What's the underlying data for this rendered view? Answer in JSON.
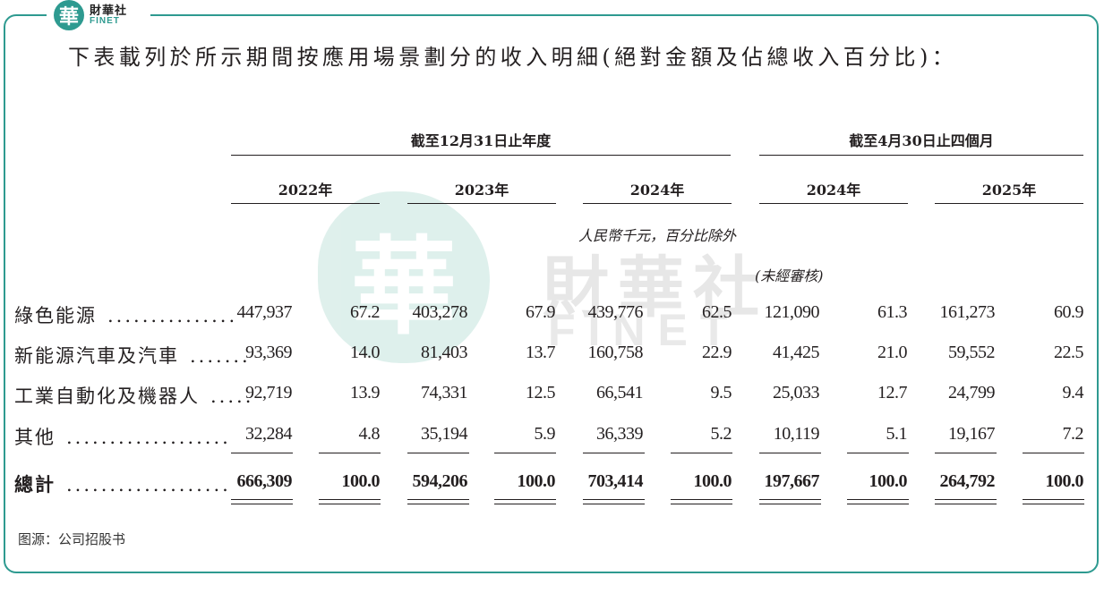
{
  "logo": {
    "mark": "華",
    "cn": "財華社",
    "en": "FINET"
  },
  "heading": "下表載列於所示期間按應用場景劃分的收入明細(絕對金額及佔總收入百分比)：",
  "watermark": {
    "mark": "華",
    "cn": "財華社",
    "en": "FINET"
  },
  "periods": [
    "截至12月31日止年度",
    "截至4月30日止四個月"
  ],
  "years": [
    "2022年",
    "2023年",
    "2024年",
    "2024年",
    "2025年"
  ],
  "currency_note": "人民幣千元，百分比除外",
  "unaudited_note": "(未經審核)",
  "rows": [
    {
      "label": "綠色能源",
      "dots": "...............",
      "values": [
        "447,937",
        "67.2",
        "403,278",
        "67.9",
        "439,776",
        "62.5",
        "121,090",
        "61.3",
        "161,273",
        "60.9"
      ]
    },
    {
      "label": "新能源汽車及汽車",
      "dots": ".......",
      "values": [
        "93,369",
        "14.0",
        "81,403",
        "13.7",
        "160,758",
        "22.9",
        "41,425",
        "21.0",
        "59,552",
        "22.5"
      ]
    },
    {
      "label": "工業自動化及機器人",
      "dots": ".....",
      "values": [
        "92,719",
        "13.9",
        "74,331",
        "12.5",
        "66,541",
        "9.5",
        "25,033",
        "12.7",
        "24,799",
        "9.4"
      ]
    },
    {
      "label": "其他",
      "dots": "...................",
      "values": [
        "32,284",
        "4.8",
        "35,194",
        "5.9",
        "36,339",
        "5.2",
        "10,119",
        "5.1",
        "19,167",
        "7.2"
      ]
    }
  ],
  "total": {
    "label": "總計",
    "dots": "...................",
    "values": [
      "666,309",
      "100.0",
      "594,206",
      "100.0",
      "703,414",
      "100.0",
      "197,667",
      "100.0",
      "264,792",
      "100.0"
    ]
  },
  "source": "图源：公司招股书",
  "colors": {
    "accent": "#2e9a90",
    "text": "#231f20"
  }
}
